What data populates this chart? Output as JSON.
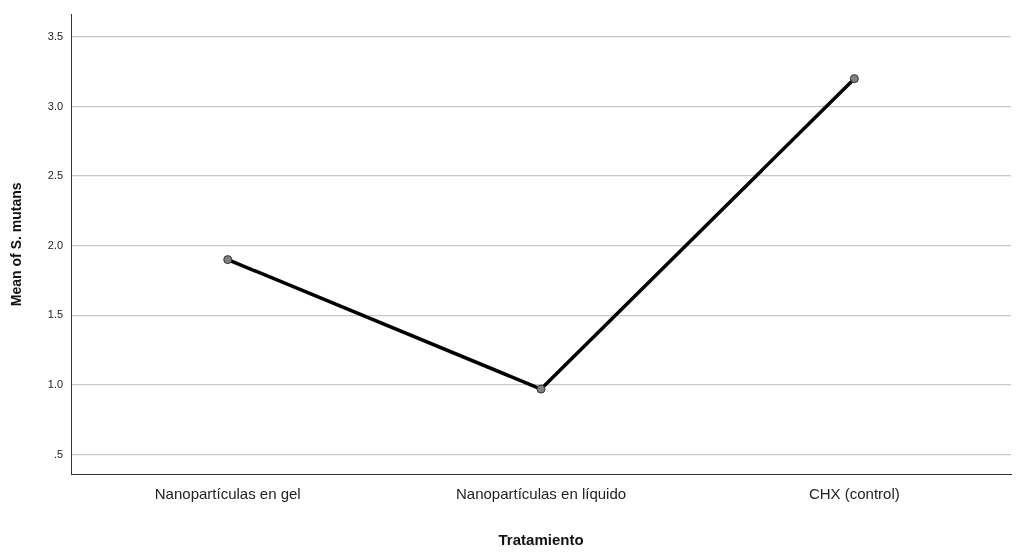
{
  "chart_data": {
    "type": "line",
    "xlabel": "Tratamiento",
    "ylabel": "Mean of S. mutans",
    "categories": [
      "Nanopartículas en gel",
      "Nanopartículas en líquido",
      "CHX (control)"
    ],
    "series": [
      {
        "color": "#000000",
        "values": [
          1.9,
          0.97,
          3.2
        ]
      }
    ],
    "ylim": [
      0.36,
      3.66
    ],
    "yticks": [
      {
        "value": 0.5,
        "label": ".5"
      },
      {
        "value": 1,
        "label": "1.0"
      },
      {
        "value": 1.5,
        "label": "1.5"
      },
      {
        "value": 2,
        "label": "2.0"
      },
      {
        "value": 2.5,
        "label": "2.5"
      },
      {
        "value": 3,
        "label": "3.0"
      },
      {
        "value": 3.5,
        "label": "3.5"
      }
    ],
    "grid": "y",
    "legend": false,
    "marker": "circle",
    "line_style": "solid"
  }
}
